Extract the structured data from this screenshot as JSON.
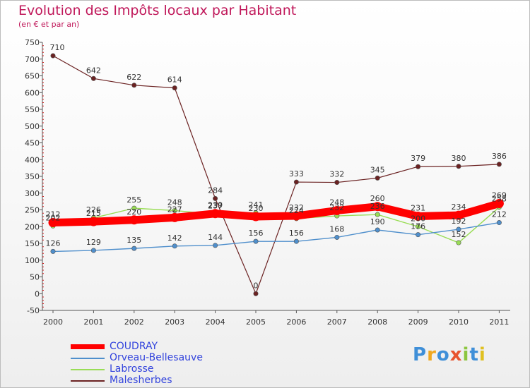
{
  "chart_data": {
    "type": "line",
    "title": "Evolution des Impôts locaux par Habitant",
    "subtitle": "(en € et par an)",
    "xlabel": "",
    "ylabel": "",
    "categories": [
      "2000",
      "2001",
      "2002",
      "2003",
      "2004",
      "2005",
      "2006",
      "2007",
      "2008",
      "2009",
      "2010",
      "2011"
    ],
    "ylim": [
      -50,
      750
    ],
    "yticks": [
      -50,
      0,
      50,
      100,
      150,
      200,
      250,
      300,
      350,
      400,
      450,
      500,
      550,
      600,
      650,
      700,
      750
    ],
    "grid": false,
    "legend_position": "bottom-left",
    "series": [
      {
        "name": "COUDRAY",
        "color": "#ff0000",
        "values": [
          212,
          215,
          220,
          227,
          239,
          230,
          232,
          248,
          260,
          231,
          234,
          269
        ]
      },
      {
        "name": "Orveau-Bellesauve",
        "color": "#4f8fcc",
        "values": [
          126,
          129,
          135,
          142,
          144,
          156,
          156,
          168,
          190,
          176,
          192,
          212
        ]
      },
      {
        "name": "Labrosse",
        "color": "#99dd55",
        "values": [
          202,
          226,
          255,
          248,
          237,
          241,
          224,
          232,
          236,
          200,
          152,
          258
        ]
      },
      {
        "name": "Malesherbes",
        "color": "#6b2222",
        "values": [
          710,
          642,
          622,
          614,
          284,
          0,
          333,
          332,
          345,
          379,
          380,
          386
        ]
      }
    ]
  },
  "logo": {
    "letters": [
      "P",
      "r",
      "o",
      "x",
      "i",
      "t",
      "i"
    ],
    "colors": [
      "#3f8fd8",
      "#f0a820",
      "#3f8fd8",
      "#e8542e",
      "#8cc63f",
      "#3f8fd8",
      "#e0c020"
    ]
  }
}
